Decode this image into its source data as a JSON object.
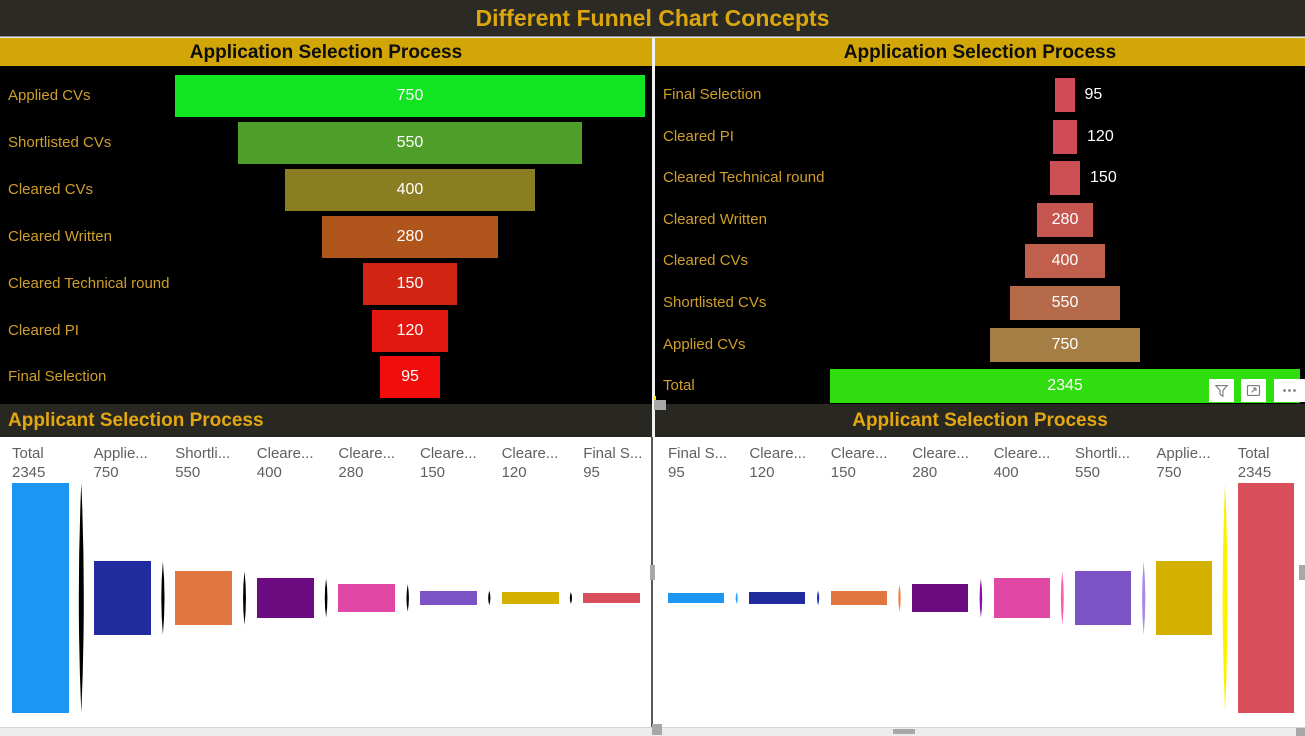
{
  "title": "Different Funnel Chart Concepts",
  "colors": {
    "gold_band": "#d2a606",
    "gold_text": "#dca70e",
    "label_gold": "#cf9f2b",
    "value_white": "#ffffff",
    "column_label": "#5f5f5f",
    "icon_gray": "#7a7a7a"
  },
  "toolbar": {
    "more_options_glyph": "···"
  },
  "chart_data": [
    {
      "type": "funnel",
      "orientation": "top-down-decreasing",
      "title": "Application Selection Process",
      "categories": [
        "Applied CVs",
        "Shortlisted CVs",
        "Cleared CVs",
        "Cleared Written",
        "Cleared Technical round",
        "Cleared PI",
        "Final Selection"
      ],
      "values": [
        750,
        550,
        400,
        280,
        150,
        120,
        95
      ],
      "bar_colors": [
        "#11e522",
        "#4f9e2a",
        "#8b7d22",
        "#b0551c",
        "#d22413",
        "#e2170f",
        "#f00d0c"
      ],
      "max_value": 750,
      "value_label_position": "inside",
      "background": "#000000",
      "legend": "none"
    },
    {
      "type": "funnel",
      "orientation": "top-down-increasing",
      "title": "Application Selection Process",
      "categories": [
        "Final Selection",
        "Cleared PI",
        "Cleared Technical round",
        "Cleared Written",
        "Cleared CVs",
        "Shortlisted CVs",
        "Applied CVs",
        "Total"
      ],
      "values": [
        95,
        120,
        150,
        280,
        400,
        550,
        750,
        2345
      ],
      "bar_colors": [
        "#d14a57",
        "#cf4c56",
        "#cc5053",
        "#c65750",
        "#bf5f4c",
        "#b56a49",
        "#a57e45",
        "#30dd0e"
      ],
      "max_value": 2345,
      "value_label_position": "inside-or-right",
      "outside_value_threshold": 160,
      "background": "#000000",
      "legend": "none"
    },
    {
      "type": "funnel",
      "orientation": "horizontal-decreasing",
      "title": "Applicant Selection Process",
      "categories": [
        "Total",
        "Applie...",
        "Shortli...",
        "Cleare...",
        "Cleare...",
        "Cleare...",
        "Cleare...",
        "Final S..."
      ],
      "values": [
        2345,
        750,
        550,
        400,
        280,
        150,
        120,
        95
      ],
      "bar_colors": [
        "#1b96f2",
        "#202c9d",
        "#e0753f",
        "#6c0a80",
        "#e148a6",
        "#7b53c4",
        "#d4b000",
        "#d84e5b"
      ],
      "connector_colors": [
        "#000000",
        "#000000",
        "#000000",
        "#000000",
        "#000000",
        "#000000",
        "#000000"
      ],
      "max_value": 2345,
      "background": "#ffffff",
      "legend": "none"
    },
    {
      "type": "funnel",
      "orientation": "horizontal-increasing",
      "title": "Applicant Selection Process",
      "categories": [
        "Final S...",
        "Cleare...",
        "Cleare...",
        "Cleare...",
        "Cleare...",
        "Shortli...",
        "Applie...",
        "Total"
      ],
      "values": [
        95,
        120,
        150,
        280,
        400,
        550,
        750,
        2345
      ],
      "bar_colors": [
        "#1b96f2",
        "#202c9d",
        "#e0753f",
        "#6c0a80",
        "#e148a6",
        "#7b53c4",
        "#d4b000",
        "#d84e5b"
      ],
      "connector_colors": [
        "#29a8ff",
        "#2238c4",
        "#f08048",
        "#8a10a2",
        "#ff5ab8",
        "#a58ae8",
        "#fff000"
      ],
      "max_value": 2345,
      "background": "#ffffff",
      "legend": "none"
    }
  ]
}
